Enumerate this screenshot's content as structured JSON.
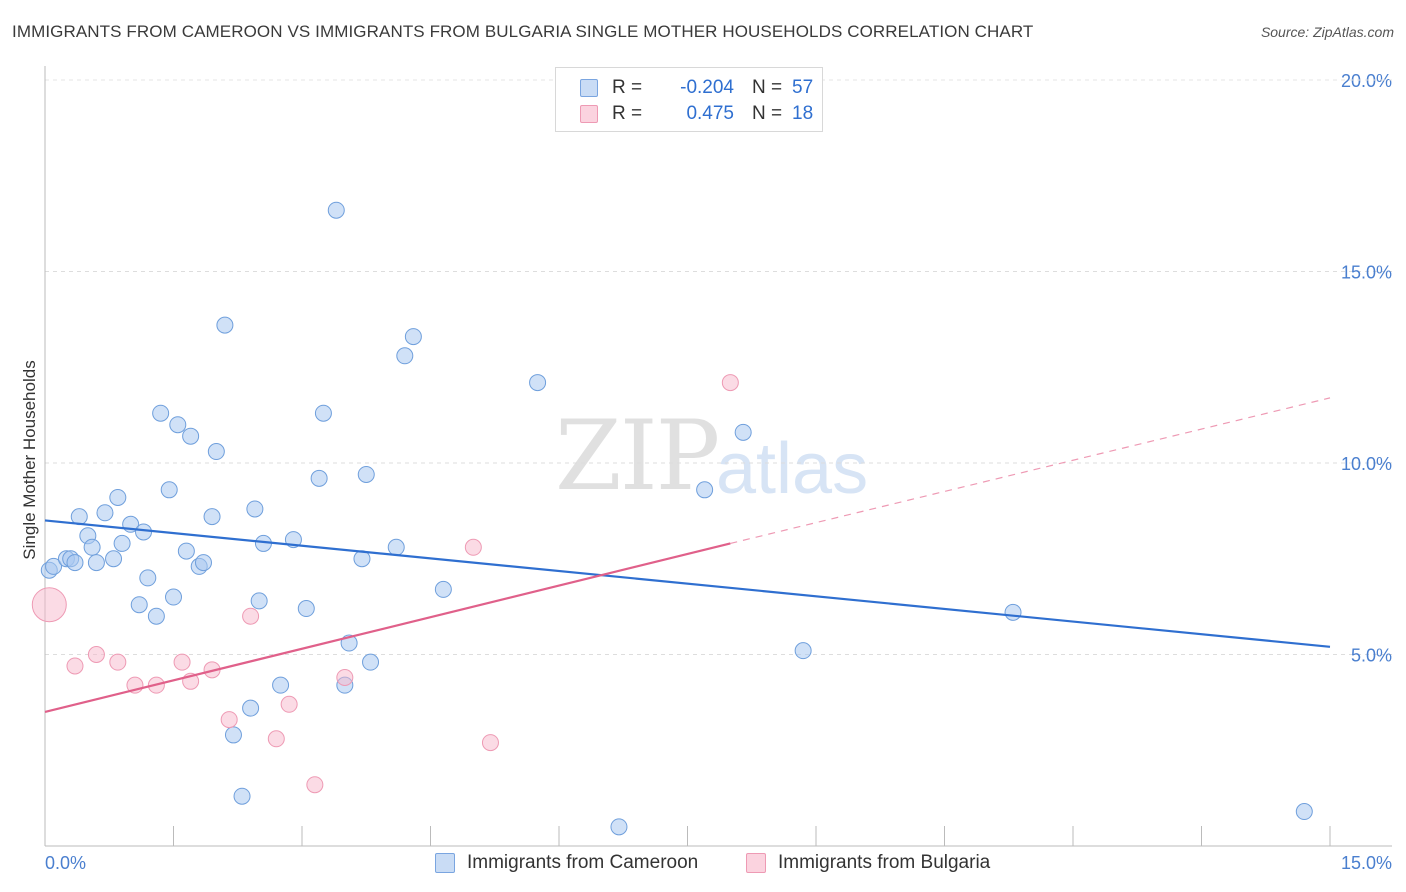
{
  "title": "IMMIGRANTS FROM CAMEROON VS IMMIGRANTS FROM BULGARIA SINGLE MOTHER HOUSEHOLDS CORRELATION CHART",
  "source": "Source: ZipAtlas.com",
  "watermark": {
    "zip": "ZIP",
    "atlas": "atlas"
  },
  "legend": {
    "rows": [
      {
        "r_label": "R =",
        "r_value": "-0.204",
        "n_label": "N =",
        "n_value": "57",
        "color": "#a9c8f0"
      },
      {
        "r_label": "R =",
        "r_value": "0.475",
        "n_label": "N =",
        "n_value": "18",
        "color": "#f7b8cb"
      }
    ]
  },
  "bottom_legend": {
    "series1": "Immigrants from Cameroon",
    "series2": "Immigrants from Bulgaria"
  },
  "chart_data": {
    "type": "scatter",
    "title": "IMMIGRANTS FROM CAMEROON VS IMMIGRANTS FROM BULGARIA SINGLE MOTHER HOUSEHOLDS CORRELATION CHART",
    "xlabel": "",
    "ylabel": "Single Mother Households",
    "xlim": [
      0,
      15
    ],
    "ylim": [
      0,
      20
    ],
    "x_tick_labels": [
      "0.0%",
      "15.0%"
    ],
    "y_ticks": [
      5,
      10,
      15,
      20
    ],
    "y_tick_labels": [
      "5.0%",
      "10.0%",
      "15.0%",
      "20.0%"
    ],
    "grid": true,
    "legend_position": "top-center",
    "colors": {
      "cameroon": "#a9c8f0",
      "cameroon_line": "#2f6fd0",
      "bulgaria": "#f7b8cb",
      "bulgaria_line": "#e0608a"
    },
    "series": [
      {
        "name": "Immigrants from Cameroon",
        "color": "#a9c8f0",
        "points": [
          [
            0.05,
            7.2
          ],
          [
            0.1,
            7.3
          ],
          [
            0.25,
            7.5
          ],
          [
            0.3,
            7.5
          ],
          [
            0.35,
            7.4
          ],
          [
            0.4,
            8.6
          ],
          [
            0.5,
            8.1
          ],
          [
            0.55,
            7.8
          ],
          [
            0.6,
            7.4
          ],
          [
            0.7,
            8.7
          ],
          [
            0.8,
            7.5
          ],
          [
            0.85,
            9.1
          ],
          [
            0.9,
            7.9
          ],
          [
            1.0,
            8.4
          ],
          [
            1.1,
            6.3
          ],
          [
            1.15,
            8.2
          ],
          [
            1.2,
            7.0
          ],
          [
            1.3,
            6.0
          ],
          [
            1.35,
            11.3
          ],
          [
            1.45,
            9.3
          ],
          [
            1.5,
            6.5
          ],
          [
            1.55,
            11.0
          ],
          [
            1.65,
            7.7
          ],
          [
            1.7,
            10.7
          ],
          [
            1.8,
            7.3
          ],
          [
            1.85,
            7.4
          ],
          [
            1.95,
            8.6
          ],
          [
            2.0,
            10.3
          ],
          [
            2.1,
            13.6
          ],
          [
            2.2,
            2.9
          ],
          [
            2.3,
            1.3
          ],
          [
            2.4,
            3.6
          ],
          [
            2.45,
            8.8
          ],
          [
            2.5,
            6.4
          ],
          [
            2.55,
            7.9
          ],
          [
            2.75,
            4.2
          ],
          [
            2.9,
            8.0
          ],
          [
            3.05,
            6.2
          ],
          [
            3.2,
            9.6
          ],
          [
            3.25,
            11.3
          ],
          [
            3.4,
            16.6
          ],
          [
            3.5,
            4.2
          ],
          [
            3.55,
            5.3
          ],
          [
            3.7,
            7.5
          ],
          [
            3.75,
            9.7
          ],
          [
            3.8,
            4.8
          ],
          [
            4.1,
            7.8
          ],
          [
            4.2,
            12.8
          ],
          [
            4.3,
            13.3
          ],
          [
            4.65,
            6.7
          ],
          [
            5.75,
            12.1
          ],
          [
            6.7,
            0.5
          ],
          [
            7.7,
            9.3
          ],
          [
            8.15,
            10.8
          ],
          [
            8.85,
            5.1
          ],
          [
            11.3,
            6.1
          ],
          [
            14.7,
            0.9
          ]
        ],
        "trend": {
          "x0": 0,
          "y0": 8.5,
          "x1": 15,
          "y1": 5.2
        }
      },
      {
        "name": "Immigrants from Bulgaria",
        "color": "#f7b8cb",
        "points": [
          [
            0.05,
            6.3
          ],
          [
            0.35,
            4.7
          ],
          [
            0.6,
            5.0
          ],
          [
            0.85,
            4.8
          ],
          [
            1.05,
            4.2
          ],
          [
            1.3,
            4.2
          ],
          [
            1.6,
            4.8
          ],
          [
            1.7,
            4.3
          ],
          [
            1.95,
            4.6
          ],
          [
            2.15,
            3.3
          ],
          [
            2.4,
            6.0
          ],
          [
            2.7,
            2.8
          ],
          [
            2.85,
            3.7
          ],
          [
            3.15,
            1.6
          ],
          [
            3.5,
            4.4
          ],
          [
            5.0,
            7.8
          ],
          [
            5.2,
            2.7
          ],
          [
            8.0,
            12.1
          ]
        ],
        "trend": {
          "x0": 0,
          "y0": 3.5,
          "x1": 8.0,
          "y1": 7.9
        },
        "trend_extension": {
          "x0": 8.0,
          "y0": 7.9,
          "x1": 15,
          "y1": 11.7
        }
      }
    ]
  }
}
